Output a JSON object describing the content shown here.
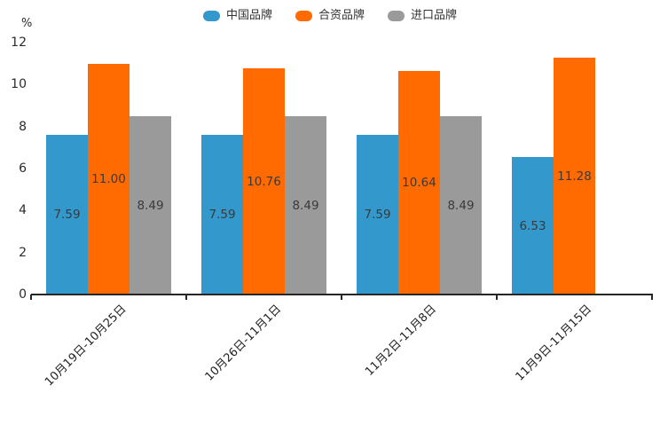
{
  "chart_data": {
    "type": "bar",
    "title": "",
    "unit_label": "%",
    "categories": [
      "10月19日-10月25日",
      "10月26日-11月1日",
      "11月2日-11月8日",
      "11月9日-11月15日"
    ],
    "series": [
      {
        "name": "中国品牌",
        "color": "#3398cb",
        "values": [
          7.59,
          7.59,
          7.59,
          6.53
        ],
        "labels": [
          "7.59",
          "7.59",
          "7.59",
          "6.53"
        ]
      },
      {
        "name": "合资品牌",
        "color": "#ff6b00",
        "values": [
          11.0,
          10.76,
          10.64,
          11.28
        ],
        "labels": [
          "11.00",
          "10.76",
          "10.64",
          "11.28"
        ]
      },
      {
        "name": "进口品牌",
        "color": "#9a9a9a",
        "values": [
          8.49,
          8.49,
          8.49,
          null
        ],
        "labels": [
          "8.49",
          "8.49",
          "8.49",
          ""
        ]
      }
    ],
    "ylim": [
      0,
      12
    ],
    "yticks": [
      0,
      2,
      4,
      6,
      8,
      10,
      12
    ],
    "grid": false,
    "legend_position": "top",
    "value_label_position": "inside-center",
    "colors": {
      "axis": "#262626",
      "tick_text": "#2b2b2b",
      "value_text": "#3a3a3a"
    }
  }
}
